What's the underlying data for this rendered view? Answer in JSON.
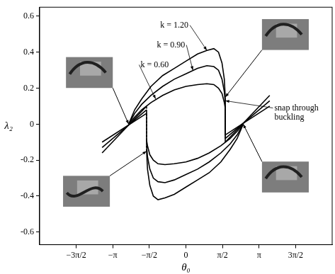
{
  "chart_data": {
    "type": "line",
    "x_label": "θ₀",
    "y_label": "λ₂",
    "xlim": [
      -6.283,
      6.283
    ],
    "ylim": [
      -0.67,
      0.65
    ],
    "xticks": [
      {
        "value": -4.712,
        "label": "−3π/2"
      },
      {
        "value": -3.1416,
        "label": "−π"
      },
      {
        "value": -1.5708,
        "label": "−π/2"
      },
      0,
      {
        "value": 1.5708,
        "label": "π/2"
      },
      {
        "value": 3.1416,
        "label": "π"
      },
      {
        "value": 4.712,
        "label": "3π/2"
      }
    ],
    "yticks": [
      -0.6,
      -0.4,
      -0.2,
      0,
      0.2,
      0.4,
      0.6
    ],
    "grid": false,
    "series": [
      {
        "color": "#000000",
        "x": [
          -2.46,
          -2.2,
          -1.9,
          -1.5,
          -1.0,
          -0.5,
          0,
          0.5,
          0.9,
          1.2,
          1.4,
          1.55,
          1.65,
          1.69,
          1.69,
          3.6
        ],
        "values": [
          0,
          0.08,
          0.14,
          0.21,
          0.27,
          0.31,
          0.35,
          0.39,
          0.41,
          0.42,
          0.4,
          0.34,
          0.25,
          0.15,
          -0.1,
          0.16
        ]
      },
      {
        "color": "#000000",
        "x": [
          -2.46,
          -2.2,
          -1.9,
          -1.5,
          -1.0,
          -0.5,
          0,
          0.5,
          0.9,
          1.2,
          1.4,
          1.55,
          1.65,
          1.69,
          1.69,
          3.6
        ],
        "values": [
          0,
          0.06,
          0.11,
          0.16,
          0.21,
          0.25,
          0.28,
          0.31,
          0.325,
          0.32,
          0.3,
          0.25,
          0.18,
          0.12,
          -0.08,
          0.13
        ]
      },
      {
        "color": "#000000",
        "x": [
          -2.46,
          -2.2,
          -1.9,
          -1.5,
          -1.0,
          -0.5,
          0,
          0.5,
          0.9,
          1.2,
          1.4,
          1.55,
          1.65,
          1.69,
          1.69,
          3.6
        ],
        "values": [
          0,
          0.04,
          0.08,
          0.12,
          0.16,
          0.19,
          0.21,
          0.22,
          0.225,
          0.22,
          0.2,
          0.17,
          0.12,
          0.09,
          -0.06,
          0.1
        ]
      },
      {
        "color": "#000000",
        "x": [
          2.46,
          2.2,
          1.9,
          1.5,
          1.0,
          0.5,
          0,
          -0.5,
          -0.9,
          -1.2,
          -1.4,
          -1.55,
          -1.65,
          -1.69,
          -1.69,
          -3.6
        ],
        "values": [
          0,
          -0.08,
          -0.14,
          -0.21,
          -0.27,
          -0.31,
          -0.35,
          -0.39,
          -0.41,
          -0.42,
          -0.4,
          -0.34,
          -0.25,
          -0.15,
          0.1,
          -0.16
        ]
      },
      {
        "color": "#000000",
        "x": [
          2.46,
          2.2,
          1.9,
          1.5,
          1.0,
          0.5,
          0,
          -0.5,
          -0.9,
          -1.2,
          -1.4,
          -1.55,
          -1.65,
          -1.69,
          -1.69,
          -3.6
        ],
        "values": [
          0,
          -0.06,
          -0.11,
          -0.16,
          -0.21,
          -0.25,
          -0.28,
          -0.31,
          -0.325,
          -0.32,
          -0.3,
          -0.25,
          -0.18,
          -0.12,
          0.08,
          -0.13
        ]
      },
      {
        "color": "#000000",
        "x": [
          2.46,
          2.2,
          1.9,
          1.5,
          1.0,
          0.5,
          0,
          -0.5,
          -0.9,
          -1.2,
          -1.4,
          -1.55,
          -1.65,
          -1.69,
          -1.69,
          -3.6
        ],
        "values": [
          0,
          -0.04,
          -0.08,
          -0.12,
          -0.16,
          -0.19,
          -0.21,
          -0.22,
          -0.225,
          -0.22,
          -0.2,
          -0.17,
          -0.12,
          -0.09,
          0.06,
          -0.1
        ]
      }
    ],
    "annotations": [
      {
        "text": [
          "k = 1.20"
        ],
        "x": -1.1,
        "y": 0.55,
        "arrow": [
          0.9,
          0.41
        ]
      },
      {
        "text": [
          "k = 0.90"
        ],
        "x": -1.25,
        "y": 0.44,
        "arrow": [
          0.3,
          0.3
        ]
      },
      {
        "text": [
          "k = 0.60"
        ],
        "x": -1.95,
        "y": 0.33,
        "arrow": [
          -1.3,
          0.14
        ]
      },
      {
        "text": [
          "snap through",
          "buckling"
        ],
        "x": 3.8,
        "y": 0.09,
        "arrow": [
          1.69,
          0.13
        ]
      }
    ]
  }
}
